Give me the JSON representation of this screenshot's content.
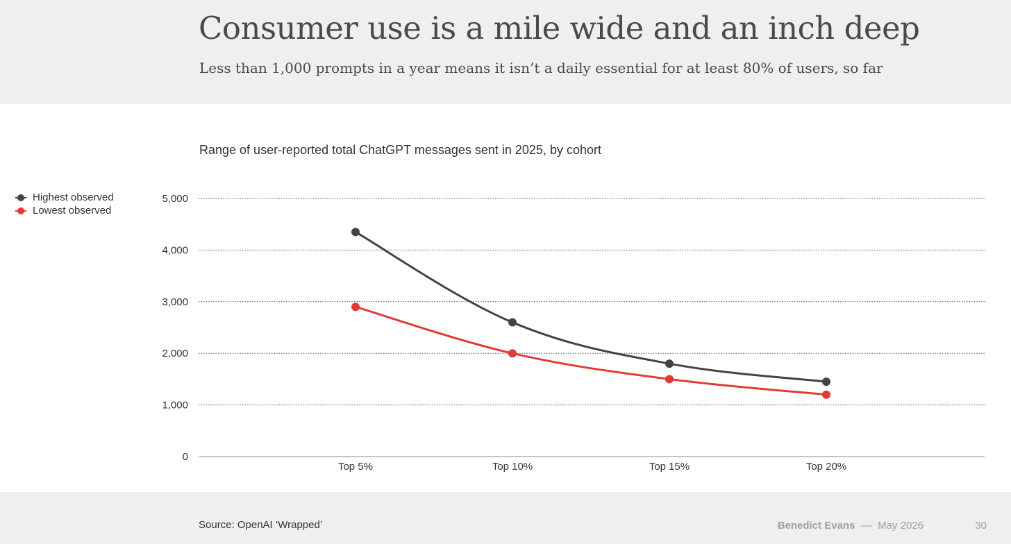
{
  "header": {
    "title": "Consumer use is a mile wide and an inch deep",
    "subtitle": "Less than 1,000 prompts in a year means it isn’t a daily essential for at least 80% of users, so far"
  },
  "legend": {
    "items": [
      {
        "label": "Highest observed",
        "color": "#434343"
      },
      {
        "label": "Lowest observed",
        "color": "#e33a35"
      }
    ]
  },
  "chart_data": {
    "type": "line",
    "title": "Range of user-reported total ChatGPT messages sent in 2025, by cohort",
    "categories": [
      "Top 5%",
      "Top 10%",
      "Top 15%",
      "Top 20%"
    ],
    "series": [
      {
        "name": "Highest observed",
        "color": "#434343",
        "values": [
          4350,
          2600,
          1800,
          1450
        ]
      },
      {
        "name": "Lowest observed",
        "color": "#e33a35",
        "values": [
          2900,
          2000,
          1500,
          1200
        ]
      }
    ],
    "ylim": [
      0,
      5000
    ],
    "yticks": [
      0,
      1000,
      2000,
      3000,
      4000,
      5000
    ],
    "ytick_labels": [
      "0",
      "1,000",
      "2,000",
      "3,000",
      "4,000",
      "5,000"
    ],
    "grid": true,
    "legend_position": "top-left"
  },
  "footer": {
    "source": "Source: OpenAI ‘Wrapped’",
    "author": "Benedict Evans",
    "separator": "––",
    "date": "May 2026",
    "page_number": "30"
  }
}
